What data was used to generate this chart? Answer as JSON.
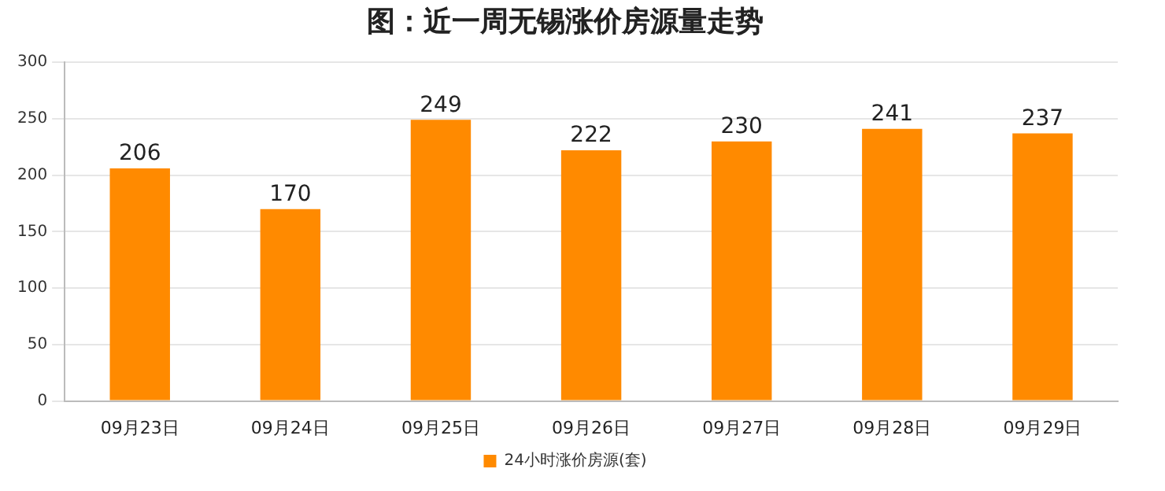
{
  "chart_data": {
    "type": "bar",
    "title": "图：近一周无锡涨价房源量走势",
    "categories": [
      "09月23日",
      "09月24日",
      "09月25日",
      "09月26日",
      "09月27日",
      "09月28日",
      "09月29日"
    ],
    "series": [
      {
        "name": "24小时涨价房源(套)",
        "color": "#ff8a00",
        "values": [
          206,
          170,
          249,
          222,
          230,
          241,
          237
        ]
      }
    ],
    "ylim": [
      0,
      300
    ],
    "yticks": [
      0,
      50,
      100,
      150,
      200,
      250,
      300
    ],
    "grid": "y",
    "legend": "bottom",
    "data_labels": true
  }
}
